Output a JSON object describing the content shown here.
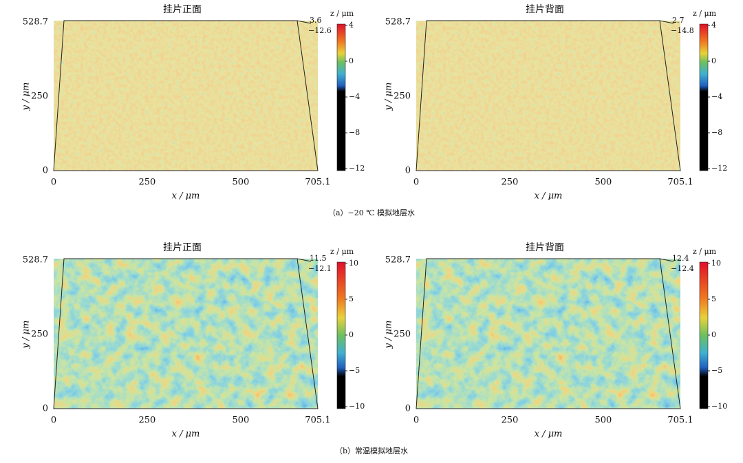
{
  "rows": [
    {
      "caption": "（a）−20 ℃ 模拟地层水",
      "panels": [
        {
          "title": "挂片正面",
          "y_label": "y / μm",
          "x_label": "x / μm",
          "x_ticks": [
            "0",
            "250",
            "500",
            "705.1"
          ],
          "y_ticks": [
            "0",
            "250",
            "528.7"
          ],
          "z_max": "3.6",
          "z_min": "−12.6",
          "colorbar_label": "z / μm",
          "colorbar_ticks": [
            "4",
            "0",
            "−4",
            "−8",
            "−12"
          ]
        },
        {
          "title": "挂片背面",
          "y_label": "y / μm",
          "x_label": "x / μm",
          "x_ticks": [
            "0",
            "250",
            "500",
            "705.1"
          ],
          "y_ticks": [
            "0",
            "250",
            "528.7"
          ],
          "z_max": "2.7",
          "z_min": "−14.8",
          "colorbar_label": "z / μm",
          "colorbar_ticks": [
            "4",
            "0",
            "−4",
            "−8",
            "−12"
          ]
        }
      ]
    },
    {
      "caption": "（b）常温模拟地层水",
      "panels": [
        {
          "title": "挂片正面",
          "y_label": "y / μm",
          "x_label": "x / μm",
          "x_ticks": [
            "0",
            "250",
            "500",
            "705.1"
          ],
          "y_ticks": [
            "0",
            "250",
            "528.7"
          ],
          "z_max": "11.5",
          "z_min": "−12.1",
          "colorbar_label": "z / μm",
          "colorbar_ticks": [
            "10",
            "5",
            "0",
            "−5",
            "−10"
          ]
        },
        {
          "title": "挂片背面",
          "y_label": "y / μm",
          "x_label": "x / μm",
          "x_ticks": [
            "0",
            "250",
            "500",
            "705.1"
          ],
          "y_ticks": [
            "0",
            "250",
            "528.7"
          ],
          "z_max": "12.4",
          "z_min": "−12.4",
          "colorbar_label": "z / μm",
          "colorbar_ticks": [
            "10",
            "5",
            "0",
            "−5",
            "−10"
          ]
        }
      ]
    }
  ]
}
